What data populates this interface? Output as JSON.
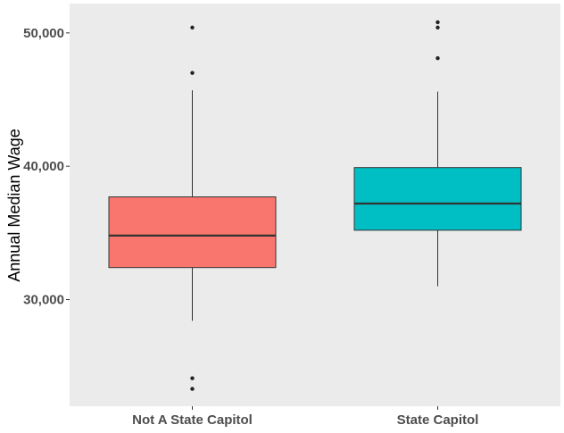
{
  "chart_data": {
    "type": "boxplot",
    "title": "",
    "xlabel": "",
    "ylabel": "Annual Median Wage",
    "ylim": [
      22000,
      52200
    ],
    "y_ticks": [
      30000,
      40000,
      50000
    ],
    "y_tick_labels": [
      "30,000",
      "40,000",
      "50,000"
    ],
    "grid": false,
    "legend": "none",
    "panel_background": "#ebebeb",
    "categories": [
      "Not A State Capitol",
      "State Capitol"
    ],
    "boxes": [
      {
        "category": "Not A State Capitol",
        "color": "#f8766d",
        "whisker_low": 28400,
        "q1": 32400,
        "median": 34800,
        "q3": 37700,
        "whisker_high": 45700,
        "outliers": [
          23300,
          24100,
          47000,
          50400
        ]
      },
      {
        "category": "State Capitol",
        "color": "#00bfc4",
        "whisker_low": 31000,
        "q1": 35200,
        "median": 37200,
        "q3": 39900,
        "whisker_high": 45600,
        "outliers": [
          48100,
          50400,
          50800
        ]
      }
    ]
  }
}
